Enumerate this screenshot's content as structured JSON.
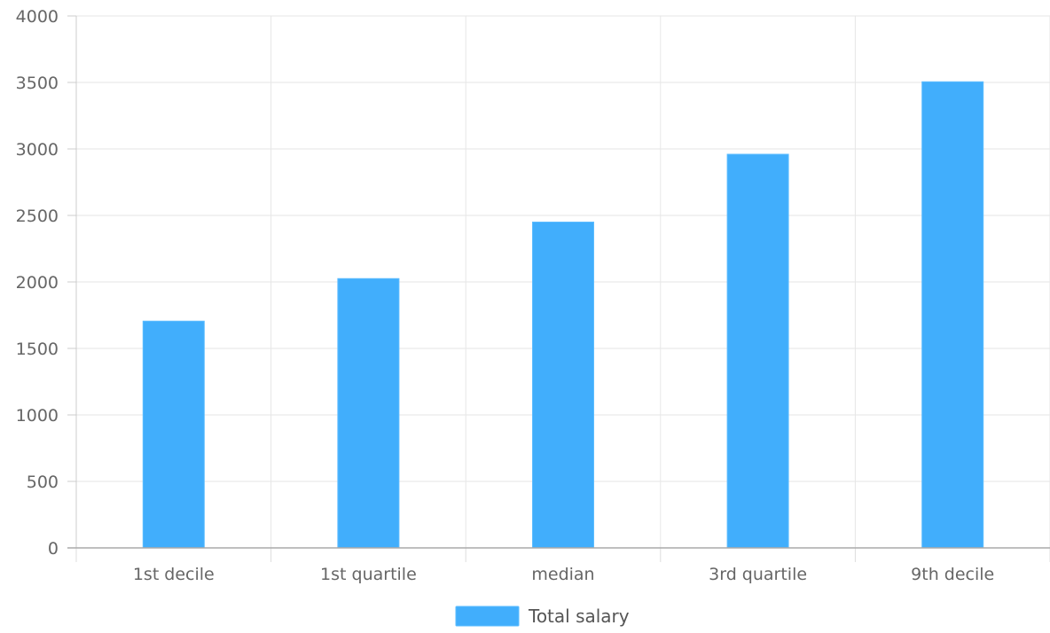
{
  "chart_data": {
    "type": "bar",
    "categories": [
      "1st decile",
      "1st quartile",
      "median",
      "3rd quartile",
      "9th decile"
    ],
    "series": [
      {
        "name": "Total salary",
        "values": [
          1705,
          2025,
          2450,
          2960,
          3505
        ],
        "color": "#41aefc"
      }
    ],
    "ylim": [
      0,
      4000
    ],
    "yticks": [
      "0",
      "500",
      "1000",
      "1500",
      "2000",
      "2500",
      "3000",
      "3500",
      "4000"
    ],
    "grid": true,
    "legend": "bottom-center"
  }
}
